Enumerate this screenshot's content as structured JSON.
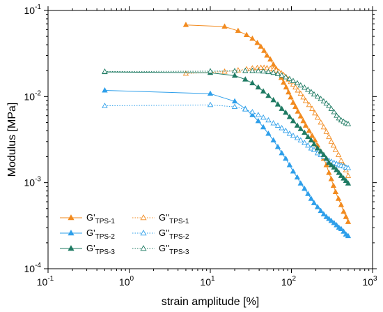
{
  "chart_data": {
    "type": "line",
    "xlabel": "strain amplitude [%]",
    "ylabel": "Modulus [MPa]",
    "xscale": "log",
    "yscale": "log",
    "xlim": [
      0.1,
      1000
    ],
    "ylim": [
      0.0001,
      0.1
    ],
    "x_ticks": [
      {
        "value": 0.1,
        "base": "10",
        "exp": "-1"
      },
      {
        "value": 1,
        "base": "10",
        "exp": "0"
      },
      {
        "value": 10,
        "base": "10",
        "exp": "1"
      },
      {
        "value": 100,
        "base": "10",
        "exp": "2"
      },
      {
        "value": 1000,
        "base": "10",
        "exp": "3"
      }
    ],
    "y_ticks": [
      {
        "value": 0.0001,
        "base": "10",
        "exp": "-4"
      },
      {
        "value": 0.001,
        "base": "10",
        "exp": "-3"
      },
      {
        "value": 0.01,
        "base": "10",
        "exp": "-2"
      },
      {
        "value": 0.1,
        "base": "10",
        "exp": "-1"
      }
    ],
    "grid": false,
    "legend_position": "bottom-left",
    "series": [
      {
        "label_main": "G'",
        "label_sub": "TPS-1",
        "color": "#f28a1e",
        "marker": "triangle",
        "filled": true,
        "line": "solid",
        "x": [
          5,
          15,
          22,
          28,
          33,
          38,
          42,
          46,
          50,
          55,
          60,
          65,
          70,
          75,
          80,
          86,
          92,
          98,
          105,
          112,
          120,
          130,
          140,
          150,
          165,
          180,
          195,
          210,
          230,
          250,
          270,
          290,
          310,
          330,
          350,
          380,
          410,
          440,
          470,
          500
        ],
        "y": [
          0.068,
          0.065,
          0.058,
          0.052,
          0.047,
          0.042,
          0.038,
          0.034,
          0.03,
          0.027,
          0.0235,
          0.021,
          0.0185,
          0.0165,
          0.0145,
          0.0128,
          0.0112,
          0.0098,
          0.0085,
          0.0076,
          0.0067,
          0.0059,
          0.0052,
          0.0046,
          0.004,
          0.0035,
          0.0031,
          0.0027,
          0.0023,
          0.0019,
          0.0016,
          0.0013,
          0.0011,
          0.00092,
          0.00078,
          0.00065,
          0.00055,
          0.00046,
          0.0004,
          0.00035
        ]
      },
      {
        "label_main": "G''",
        "label_sub": "TPS-1",
        "color": "#f28a1e",
        "marker": "triangle",
        "filled": false,
        "line": "dotted",
        "x": [
          5,
          15,
          22,
          28,
          33,
          38,
          42,
          46,
          50,
          55,
          60,
          65,
          70,
          75,
          80,
          86,
          92,
          98,
          105,
          112,
          120,
          130,
          140,
          150,
          165,
          180,
          195,
          210,
          230,
          250,
          270,
          290,
          310,
          330,
          350,
          380,
          410,
          440,
          470,
          500
        ],
        "y": [
          0.0185,
          0.0195,
          0.0202,
          0.0208,
          0.0213,
          0.0215,
          0.0216,
          0.0216,
          0.0214,
          0.0211,
          0.0207,
          0.0202,
          0.0195,
          0.0187,
          0.0178,
          0.0168,
          0.0158,
          0.0148,
          0.0138,
          0.0128,
          0.0118,
          0.0108,
          0.0098,
          0.0089,
          0.008,
          0.0072,
          0.0064,
          0.0057,
          0.005,
          0.0044,
          0.0039,
          0.0034,
          0.003,
          0.0027,
          0.0024,
          0.0021,
          0.0018,
          0.0016,
          0.0014,
          0.0012
        ]
      },
      {
        "label_main": "G'",
        "label_sub": "TPS-2",
        "color": "#2e9fea",
        "marker": "triangle",
        "filled": true,
        "line": "solid",
        "x": [
          0.5,
          10,
          20,
          27,
          33,
          39,
          45,
          52,
          60,
          68,
          76,
          85,
          95,
          105,
          118,
          130,
          145,
          160,
          175,
          190,
          210,
          230,
          250,
          270,
          290,
          310,
          335,
          360,
          385,
          410,
          440,
          470,
          500
        ],
        "y": [
          0.0118,
          0.0108,
          0.0088,
          0.0072,
          0.0061,
          0.0052,
          0.0044,
          0.0037,
          0.0031,
          0.0026,
          0.0022,
          0.0019,
          0.0016,
          0.00135,
          0.00115,
          0.00098,
          0.00085,
          0.00074,
          0.00065,
          0.00058,
          0.00052,
          0.00047,
          0.00043,
          0.0004,
          0.00038,
          0.00036,
          0.00034,
          0.00032,
          0.0003,
          0.00029,
          0.00027,
          0.00025,
          0.00024
        ]
      },
      {
        "label_main": "G''",
        "label_sub": "TPS-2",
        "color": "#2e9fea",
        "marker": "triangle",
        "filled": false,
        "line": "dotted",
        "x": [
          0.5,
          10,
          20,
          27,
          33,
          39,
          45,
          52,
          60,
          68,
          76,
          85,
          95,
          105,
          118,
          130,
          145,
          160,
          175,
          190,
          210,
          230,
          250,
          270,
          290,
          310,
          335,
          360,
          385,
          410,
          440,
          470,
          500
        ],
        "y": [
          0.0078,
          0.008,
          0.0076,
          0.0071,
          0.0066,
          0.0061,
          0.0057,
          0.0053,
          0.0049,
          0.0046,
          0.0043,
          0.004,
          0.0037,
          0.0035,
          0.0033,
          0.0031,
          0.0029,
          0.0027,
          0.0025,
          0.0024,
          0.0022,
          0.0021,
          0.002,
          0.0019,
          0.0018,
          0.00175,
          0.0017,
          0.00165,
          0.0016,
          0.00158,
          0.00155,
          0.0015,
          0.00148
        ]
      },
      {
        "label_main": "G'",
        "label_sub": "TPS-3",
        "color": "#1e7a62",
        "marker": "triangle",
        "filled": true,
        "line": "solid",
        "x": [
          0.5,
          10,
          20,
          27,
          33,
          39,
          45,
          52,
          60,
          68,
          76,
          85,
          95,
          105,
          118,
          130,
          145,
          160,
          175,
          190,
          210,
          230,
          250,
          270,
          290,
          310,
          335,
          360,
          385,
          410,
          440,
          470,
          500
        ],
        "y": [
          0.0193,
          0.0189,
          0.0175,
          0.0158,
          0.0143,
          0.0128,
          0.0115,
          0.0102,
          0.0091,
          0.0081,
          0.0072,
          0.0065,
          0.0058,
          0.0052,
          0.0046,
          0.0042,
          0.0038,
          0.0034,
          0.0031,
          0.0028,
          0.0025,
          0.0023,
          0.0021,
          0.0019,
          0.0017,
          0.0016,
          0.0015,
          0.0014,
          0.0013,
          0.0012,
          0.00112,
          0.00105,
          0.00098
        ]
      },
      {
        "label_main": "G''",
        "label_sub": "TPS-3",
        "color": "#1e7a62",
        "marker": "triangle",
        "filled": false,
        "line": "dotted",
        "x": [
          0.5,
          10,
          20,
          27,
          33,
          39,
          45,
          52,
          60,
          68,
          76,
          85,
          95,
          105,
          118,
          130,
          145,
          160,
          175,
          190,
          210,
          230,
          250,
          270,
          290,
          310,
          335,
          360,
          385,
          410,
          440,
          470,
          500
        ],
        "y": [
          0.0195,
          0.0197,
          0.0198,
          0.0199,
          0.0199,
          0.0198,
          0.0196,
          0.0193,
          0.0189,
          0.0183,
          0.0176,
          0.0168,
          0.016,
          0.0152,
          0.0143,
          0.0135,
          0.0127,
          0.012,
          0.0113,
          0.0106,
          0.01,
          0.0094,
          0.0088,
          0.0083,
          0.0078,
          0.0072,
          0.0066,
          0.006,
          0.0056,
          0.0053,
          0.0051,
          0.0049,
          0.0048
        ]
      }
    ]
  }
}
